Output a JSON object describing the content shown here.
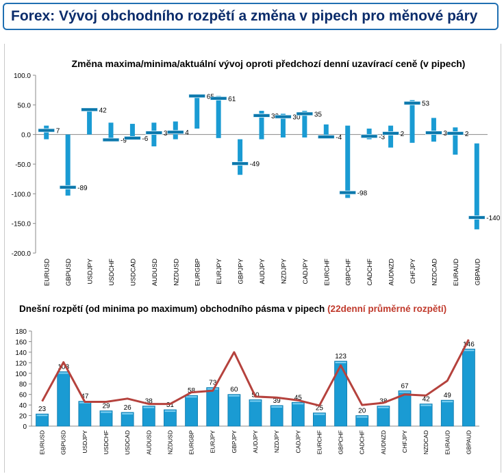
{
  "page_title": "Forex: Vývoj obchodního rozpětí a změna v pipech pro měnové páry",
  "colors": {
    "bar": "#1a9bd3",
    "bar_dark": "#0c78ac",
    "line": "#b5423d",
    "title": "#0b2c6b",
    "red_text": "#c0392b"
  },
  "chart_data": [
    {
      "type": "bar",
      "title": "Změna maxima/minima/aktuální vývoj oproti předchozí denní uzavírací ceně (v pipech)",
      "categories": [
        "EURUSD",
        "GBPUSD",
        "USDJPY",
        "USDCHF",
        "USDCAD",
        "AUDUSD",
        "NZDUSD",
        "EURGBP",
        "EURJPY",
        "GBPJPY",
        "AUDJPY",
        "NZDJPY",
        "CADJPY",
        "EURCHF",
        "GBPCHF",
        "CADCHF",
        "AUDNZD",
        "CHFJPY",
        "NZDCAD",
        "EURAUD",
        "GBPAUD"
      ],
      "high": [
        15,
        0,
        45,
        20,
        18,
        20,
        22,
        68,
        65,
        -8,
        40,
        35,
        40,
        17,
        15,
        10,
        15,
        58,
        28,
        12,
        -15
      ],
      "low": [
        -8,
        -103,
        0,
        -12,
        -8,
        -20,
        -8,
        10,
        -6,
        -68,
        -8,
        -5,
        -5,
        -5,
        -107,
        -8,
        -22,
        -14,
        -12,
        -34,
        -160
      ],
      "current": [
        7,
        -89,
        42,
        -9,
        -6,
        3,
        4,
        65,
        61,
        -49,
        32,
        30,
        35,
        -4,
        -98,
        -3,
        2,
        53,
        3,
        2,
        -140
      ],
      "labels": [
        "7",
        "-89",
        "42",
        "-9",
        "-6",
        "3",
        "4",
        "65",
        "61",
        "-49",
        "32",
        "30",
        "35",
        "-4",
        "-98",
        "-3",
        "2",
        "53",
        "3",
        "2",
        "-140"
      ],
      "yticks": [
        "100.0",
        "50.0",
        "0.0",
        "-50.0",
        "-100.0",
        "-150.0",
        "-200.0"
      ],
      "ylim": [
        -200,
        100
      ]
    },
    {
      "type": "bar",
      "title": "Dnešní rozpětí (od minima po maximum) obchodního pásma v pipech",
      "title_red": "(22denní průměrné rozpětí)",
      "categories": [
        "EURUSD",
        "GBPUSD",
        "USDJPY",
        "USDCHF",
        "USDCAD",
        "AUDUSD",
        "NZDUSD",
        "EURGBP",
        "EURJPY",
        "GBPJPY",
        "AUDJPY",
        "NZDJPY",
        "CADJPY",
        "EURCHF",
        "GBPCHF",
        "CADCHF",
        "AUDNZD",
        "CHFJPY",
        "NZDCAD",
        "EURAUD",
        "GBPAUD"
      ],
      "values": [
        23,
        103,
        47,
        29,
        26,
        38,
        31,
        58,
        73,
        60,
        50,
        39,
        45,
        25,
        123,
        20,
        38,
        67,
        42,
        49,
        146
      ],
      "labels": [
        "23",
        "103",
        "47",
        "29",
        "26",
        "38",
        "31",
        "58",
        "73",
        "60",
        "50",
        "39",
        "45",
        "25",
        "123",
        "20",
        "38",
        "67",
        "42",
        "49",
        "146"
      ],
      "avg_22d": [
        47,
        121,
        46,
        46,
        52,
        42,
        42,
        64,
        67,
        140,
        56,
        54,
        49,
        39,
        115,
        40,
        44,
        60,
        58,
        86,
        164
      ],
      "yticks": [
        "180",
        "160",
        "140",
        "120",
        "100",
        "80",
        "60",
        "40",
        "20",
        "0"
      ],
      "ylim": [
        0,
        180
      ]
    }
  ]
}
